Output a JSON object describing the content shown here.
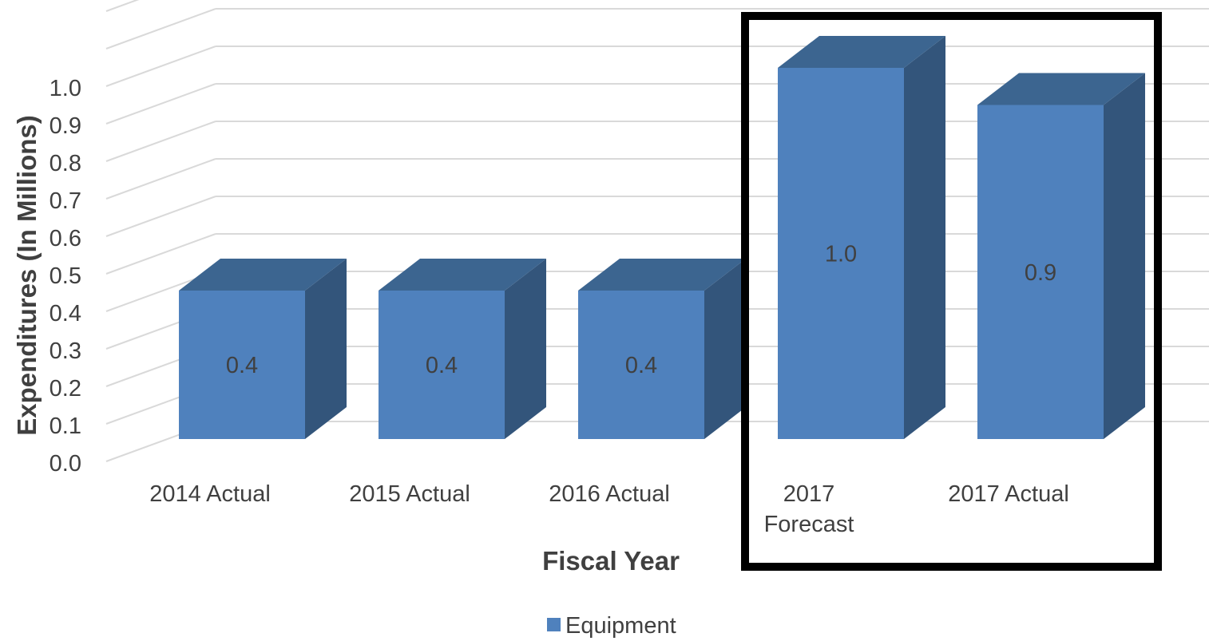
{
  "chart_data": {
    "type": "bar",
    "style": "3d-column",
    "categories": [
      "2014 Actual",
      "2015 Actual",
      "2016 Actual",
      "2017 Forecast",
      "2017 Actual"
    ],
    "category_lines": [
      [
        "2014 Actual"
      ],
      [
        "2015 Actual"
      ],
      [
        "2016 Actual"
      ],
      [
        "2017",
        "Forecast"
      ],
      [
        "2017 Actual"
      ]
    ],
    "series": [
      {
        "name": "Equipment",
        "values": [
          0.4,
          0.4,
          0.4,
          1.0,
          0.9
        ],
        "data_labels": [
          "0.4",
          "0.4",
          "0.4",
          "1.0",
          "0.9"
        ],
        "color": "#4f81bd"
      }
    ],
    "yticks": [
      "0.0",
      "0.1",
      "0.2",
      "0.3",
      "0.4",
      "0.5",
      "0.6",
      "0.7",
      "0.8",
      "0.9",
      "1.0"
    ],
    "xlabel": "Fiscal Year",
    "ylabel": "Expenditures (In Millions)",
    "ylim": [
      0,
      1.2
    ],
    "grid": true,
    "legend": "bottom",
    "highlighted_categories": [
      "2017 Forecast",
      "2017 Actual"
    ],
    "colors": {
      "bar_front": "#4f81bd",
      "bar_top": "#3c6590",
      "bar_side": "#33557b",
      "grid": "#d9d9d9",
      "text": "#404040",
      "highlight_box": "#000000"
    }
  }
}
